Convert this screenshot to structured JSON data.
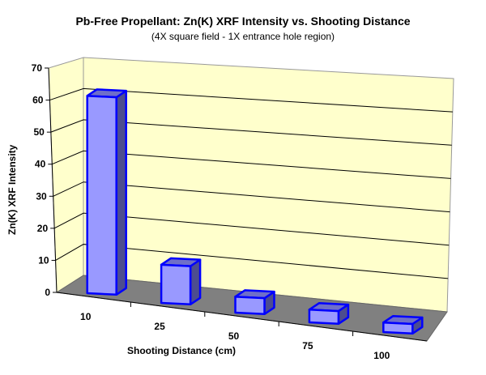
{
  "chart_data": {
    "type": "bar",
    "title": "Pb-Free Propellant:   Zn(K) XRF Intensity vs. Shooting Distance",
    "subtitle": "(4X square field - 1X entrance hole region)",
    "xlabel": "Shooting Distance (cm)",
    "ylabel": "Zn(K) XRF Intensity",
    "categories": [
      "10",
      "25",
      "50",
      "75",
      "100"
    ],
    "values": [
      62,
      12,
      5,
      4,
      3
    ],
    "ylim": [
      0,
      70
    ],
    "yticks": [
      0,
      10,
      20,
      30,
      40,
      50,
      60,
      70
    ],
    "grid": true,
    "legend": "none",
    "style": "3d-column"
  },
  "colors": {
    "wall": "#FFFFCC",
    "floor": "#808080",
    "bar_front": "#9999FF",
    "bar_side": "#4D4D8F",
    "bar_top": "#6F6FC8",
    "bar_outline": "#0000FF",
    "gridline": "#000000"
  }
}
